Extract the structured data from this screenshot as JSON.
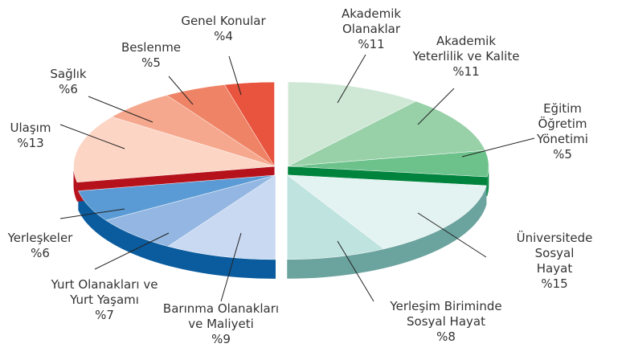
{
  "chart_data": {
    "type": "pie",
    "categories": [
      "Akademik\nOlanaklar",
      "Akademik\nYeterlilik ve Kalite",
      "Eğitim Öğretim\nYönetimi",
      "Üniversitede\nSosyal Hayat",
      "Yerleşim Biriminde\nSosyal Hayat",
      "Barınma Olanakları\nve Maliyeti",
      "Yurt Olanakları ve\nYurt Yaşamı",
      "Yerleşkeler",
      "Ulaşım",
      "Sağlık",
      "Beslenme",
      "Genel Konular"
    ],
    "values": [
      11,
      11,
      5,
      15,
      8,
      9,
      7,
      6,
      13,
      6,
      5,
      4
    ],
    "value_labels": [
      "%11",
      "%11",
      "%5",
      "%15",
      "%8",
      "%9",
      "%7",
      "%6",
      "%13",
      "%6",
      "%5",
      "%4"
    ],
    "colors": [
      "#cfe8d6",
      "#98d0a8",
      "#6cc28a",
      "#e3f3f1",
      "#bfe3df",
      "#c9d9f2",
      "#93b7e2",
      "#5b9bd5",
      "#fcd5c5",
      "#f6a88e",
      "#ef8365",
      "#e8543e"
    ]
  }
}
